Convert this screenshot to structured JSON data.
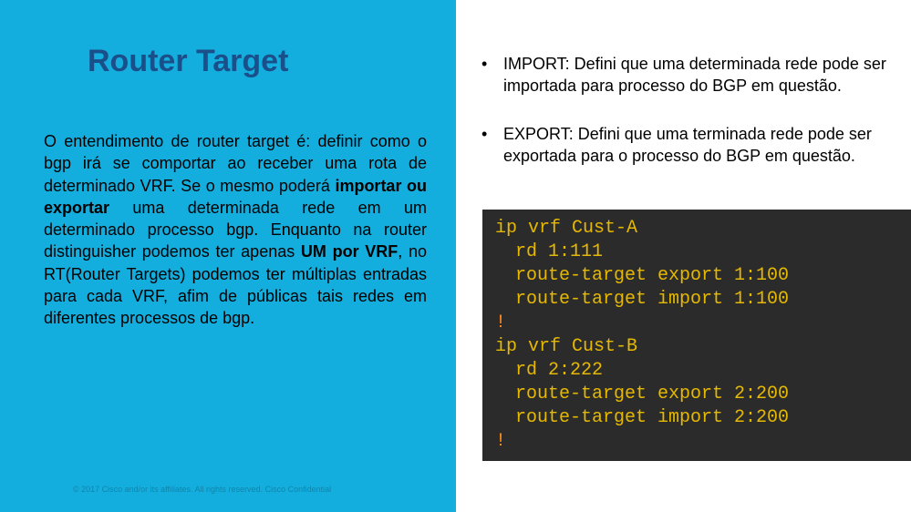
{
  "colors": {
    "leftPanelBg": "#14aede",
    "titleColor": "#1a4f8a",
    "terminalBg": "#2b2b2b",
    "terminalYellow": "#e6b800",
    "terminalOrange": "#ff8c1a"
  },
  "title": "Router Target",
  "bodyHtml": "O entendimento de router target é: definir como o bgp irá se comportar ao receber uma rota de determinado VRF. Se o mesmo poderá <b>importar ou exportar</b> uma determinada rede em um determinado processo bgp. Enquanto na router distinguisher podemos ter apenas <b>UM por VRF</b>, no RT(Router Targets) podemos ter múltiplas entradas para cada VRF, afim de públicas tais redes em diferentes processos de bgp.",
  "footer": "© 2017  Cisco and/or its affiliates. All rights reserved.   Cisco Confidential",
  "bullets": [
    "IMPORT: Defini que uma determinada rede pode ser importada para processo do BGP em questão.",
    "EXPORT: Defini que uma terminada rede pode ser exportada para o processo do BGP em questão."
  ],
  "terminal": {
    "lines": [
      {
        "text": "ip vrf Cust-A",
        "color": "yellow",
        "indent": 0
      },
      {
        "text": "rd 1:111",
        "color": "yellow",
        "indent": 1
      },
      {
        "text": "route-target export 1:100",
        "color": "yellow",
        "indent": 1
      },
      {
        "text": "route-target import 1:100",
        "color": "yellow",
        "indent": 1
      },
      {
        "text": "!",
        "color": "orange",
        "indent": 0
      },
      {
        "text": "ip vrf Cust-B",
        "color": "yellow",
        "indent": 0
      },
      {
        "text": "rd 2:222",
        "color": "yellow",
        "indent": 1
      },
      {
        "text": "route-target export 2:200",
        "color": "yellow",
        "indent": 1
      },
      {
        "text": "route-target import 2:200",
        "color": "yellow",
        "indent": 1
      },
      {
        "text": "!",
        "color": "orange",
        "indent": 0
      }
    ]
  }
}
